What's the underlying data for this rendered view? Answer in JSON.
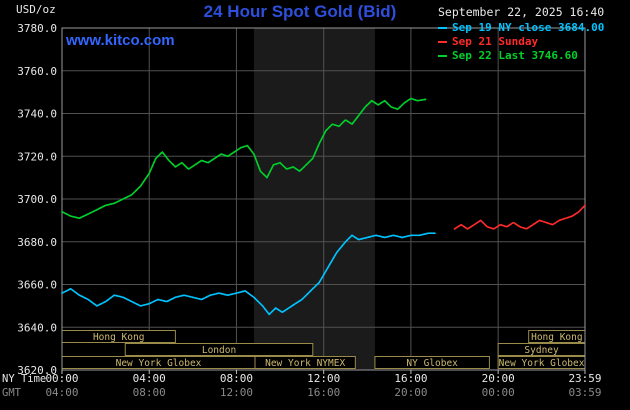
{
  "header": {
    "unit_label": "USD/oz",
    "title": "24 Hour Spot Gold (Bid)",
    "datetime": "September 22, 2025 16:40",
    "watermark": "www.kitco.com"
  },
  "legend": {
    "items": [
      {
        "label": "Sep 19 NY close 3684.00",
        "color": "#00C3FF"
      },
      {
        "label": "Sep 21 Sunday",
        "color": "#FF2A2A"
      },
      {
        "label": "Sep 22 Last 3746.60",
        "color": "#00D02A"
      }
    ]
  },
  "axes": {
    "ny_label": "NY Time",
    "gmt_label": "GMT",
    "x_tick_hours": [
      0,
      4,
      8,
      12,
      16,
      20,
      23.983
    ],
    "x_labels_ny": [
      "00:00",
      "04:00",
      "08:00",
      "12:00",
      "16:00",
      "20:00",
      "23:59"
    ],
    "x_labels_gmt": [
      "04:00",
      "08:00",
      "12:00",
      "16:00",
      "20:00",
      "00:00",
      "03:59"
    ],
    "y_ticks": [
      3620,
      3640,
      3660,
      3680,
      3700,
      3720,
      3740,
      3760,
      3780
    ]
  },
  "colors": {
    "background": "#000000",
    "grid": "#515151",
    "plot_border": "#9a9a9a",
    "shade": "#1b1b1b",
    "session_border": "#9b8b4b",
    "session_text": "#cdb96e",
    "axis_text": "#e8e8e8",
    "gmt_text": "#8a8a8a",
    "tick": "#bbbbbb",
    "title": "#2e4fdb",
    "watermark": "#3366ff",
    "date_text": "#e8e8e8",
    "unit_text": "#e8e8e8"
  },
  "chart_data": {
    "type": "line",
    "title": "24 Hour Spot Gold (Bid)",
    "xlabel": "NY Time",
    "ylabel": "USD/oz",
    "xlim_hours": [
      0,
      23.983
    ],
    "ylim": [
      3620,
      3780
    ],
    "grid": true,
    "shade_hours": [
      8.8,
      14.35
    ],
    "series": [
      {
        "name": "Sep 19 NY close 3684.00",
        "color": "#00C3FF",
        "points": [
          [
            0,
            3656
          ],
          [
            0.4,
            3658
          ],
          [
            0.8,
            3655
          ],
          [
            1.2,
            3653
          ],
          [
            1.6,
            3650
          ],
          [
            2.0,
            3652
          ],
          [
            2.4,
            3655
          ],
          [
            2.8,
            3654
          ],
          [
            3.2,
            3652
          ],
          [
            3.6,
            3650
          ],
          [
            4.0,
            3651
          ],
          [
            4.4,
            3653
          ],
          [
            4.8,
            3652
          ],
          [
            5.2,
            3654
          ],
          [
            5.6,
            3655
          ],
          [
            6.0,
            3654
          ],
          [
            6.4,
            3653
          ],
          [
            6.8,
            3655
          ],
          [
            7.2,
            3656
          ],
          [
            7.6,
            3655
          ],
          [
            8.0,
            3656
          ],
          [
            8.4,
            3657
          ],
          [
            8.8,
            3654
          ],
          [
            9.2,
            3650
          ],
          [
            9.5,
            3646
          ],
          [
            9.8,
            3649
          ],
          [
            10.1,
            3647
          ],
          [
            10.4,
            3649
          ],
          [
            10.7,
            3651
          ],
          [
            11.0,
            3653
          ],
          [
            11.4,
            3657
          ],
          [
            11.8,
            3661
          ],
          [
            12.2,
            3668
          ],
          [
            12.6,
            3675
          ],
          [
            13.0,
            3680
          ],
          [
            13.3,
            3683
          ],
          [
            13.6,
            3681
          ],
          [
            14.0,
            3682
          ],
          [
            14.4,
            3683
          ],
          [
            14.8,
            3682
          ],
          [
            15.2,
            3683
          ],
          [
            15.6,
            3682
          ],
          [
            16.0,
            3683
          ],
          [
            16.4,
            3683
          ],
          [
            16.8,
            3684
          ],
          [
            17.1,
            3684
          ]
        ]
      },
      {
        "name": "Sep 21 Sunday",
        "color": "#FF2A2A",
        "points": [
          [
            18.0,
            3686
          ],
          [
            18.3,
            3688
          ],
          [
            18.6,
            3686
          ],
          [
            18.9,
            3688
          ],
          [
            19.2,
            3690
          ],
          [
            19.5,
            3687
          ],
          [
            19.8,
            3686
          ],
          [
            20.1,
            3688
          ],
          [
            20.4,
            3687
          ],
          [
            20.7,
            3689
          ],
          [
            21.0,
            3687
          ],
          [
            21.3,
            3686
          ],
          [
            21.6,
            3688
          ],
          [
            21.9,
            3690
          ],
          [
            22.2,
            3689
          ],
          [
            22.5,
            3688
          ],
          [
            22.8,
            3690
          ],
          [
            23.1,
            3691
          ],
          [
            23.4,
            3692
          ],
          [
            23.7,
            3694
          ],
          [
            23.98,
            3697
          ]
        ]
      },
      {
        "name": "Sep 22 Last 3746.60",
        "color": "#00D02A",
        "points": [
          [
            0,
            3694
          ],
          [
            0.4,
            3692
          ],
          [
            0.8,
            3691
          ],
          [
            1.2,
            3693
          ],
          [
            1.6,
            3695
          ],
          [
            2.0,
            3697
          ],
          [
            2.4,
            3698
          ],
          [
            2.8,
            3700
          ],
          [
            3.2,
            3702
          ],
          [
            3.6,
            3706
          ],
          [
            4.0,
            3712
          ],
          [
            4.3,
            3719
          ],
          [
            4.6,
            3722
          ],
          [
            4.9,
            3718
          ],
          [
            5.2,
            3715
          ],
          [
            5.5,
            3717
          ],
          [
            5.8,
            3714
          ],
          [
            6.1,
            3716
          ],
          [
            6.4,
            3718
          ],
          [
            6.7,
            3717
          ],
          [
            7.0,
            3719
          ],
          [
            7.3,
            3721
          ],
          [
            7.6,
            3720
          ],
          [
            7.9,
            3722
          ],
          [
            8.2,
            3724
          ],
          [
            8.5,
            3725
          ],
          [
            8.8,
            3721
          ],
          [
            9.1,
            3713
          ],
          [
            9.4,
            3710
          ],
          [
            9.7,
            3716
          ],
          [
            10.0,
            3717
          ],
          [
            10.3,
            3714
          ],
          [
            10.6,
            3715
          ],
          [
            10.9,
            3713
          ],
          [
            11.2,
            3716
          ],
          [
            11.5,
            3719
          ],
          [
            11.8,
            3726
          ],
          [
            12.1,
            3732
          ],
          [
            12.4,
            3735
          ],
          [
            12.7,
            3734
          ],
          [
            13.0,
            3737
          ],
          [
            13.3,
            3735
          ],
          [
            13.6,
            3739
          ],
          [
            13.9,
            3743
          ],
          [
            14.2,
            3746
          ],
          [
            14.5,
            3744
          ],
          [
            14.8,
            3746
          ],
          [
            15.1,
            3743
          ],
          [
            15.4,
            3742
          ],
          [
            15.7,
            3745
          ],
          [
            16.0,
            3747
          ],
          [
            16.3,
            3746
          ],
          [
            16.67,
            3746.6
          ]
        ]
      }
    ],
    "sessions": [
      {
        "row": 0,
        "label": "Hong Kong",
        "start": 0,
        "end": 5.2
      },
      {
        "row": 0,
        "label": "Hong Kong",
        "start": 21.4,
        "end": 23.983
      },
      {
        "row": 1,
        "label": "London",
        "start": 2.9,
        "end": 11.5
      },
      {
        "row": 1,
        "label": "Sydney",
        "start": 20.0,
        "end": 23.983
      },
      {
        "row": 2,
        "label": "New York Globex",
        "start": 0,
        "end": 8.85
      },
      {
        "row": 2,
        "label": "New York NYMEX",
        "start": 8.85,
        "end": 13.45
      },
      {
        "row": 2,
        "label": "NY Globex",
        "start": 14.35,
        "end": 19.6
      },
      {
        "row": 2,
        "label": "New York Globex",
        "start": 20.0,
        "end": 23.983
      }
    ]
  }
}
